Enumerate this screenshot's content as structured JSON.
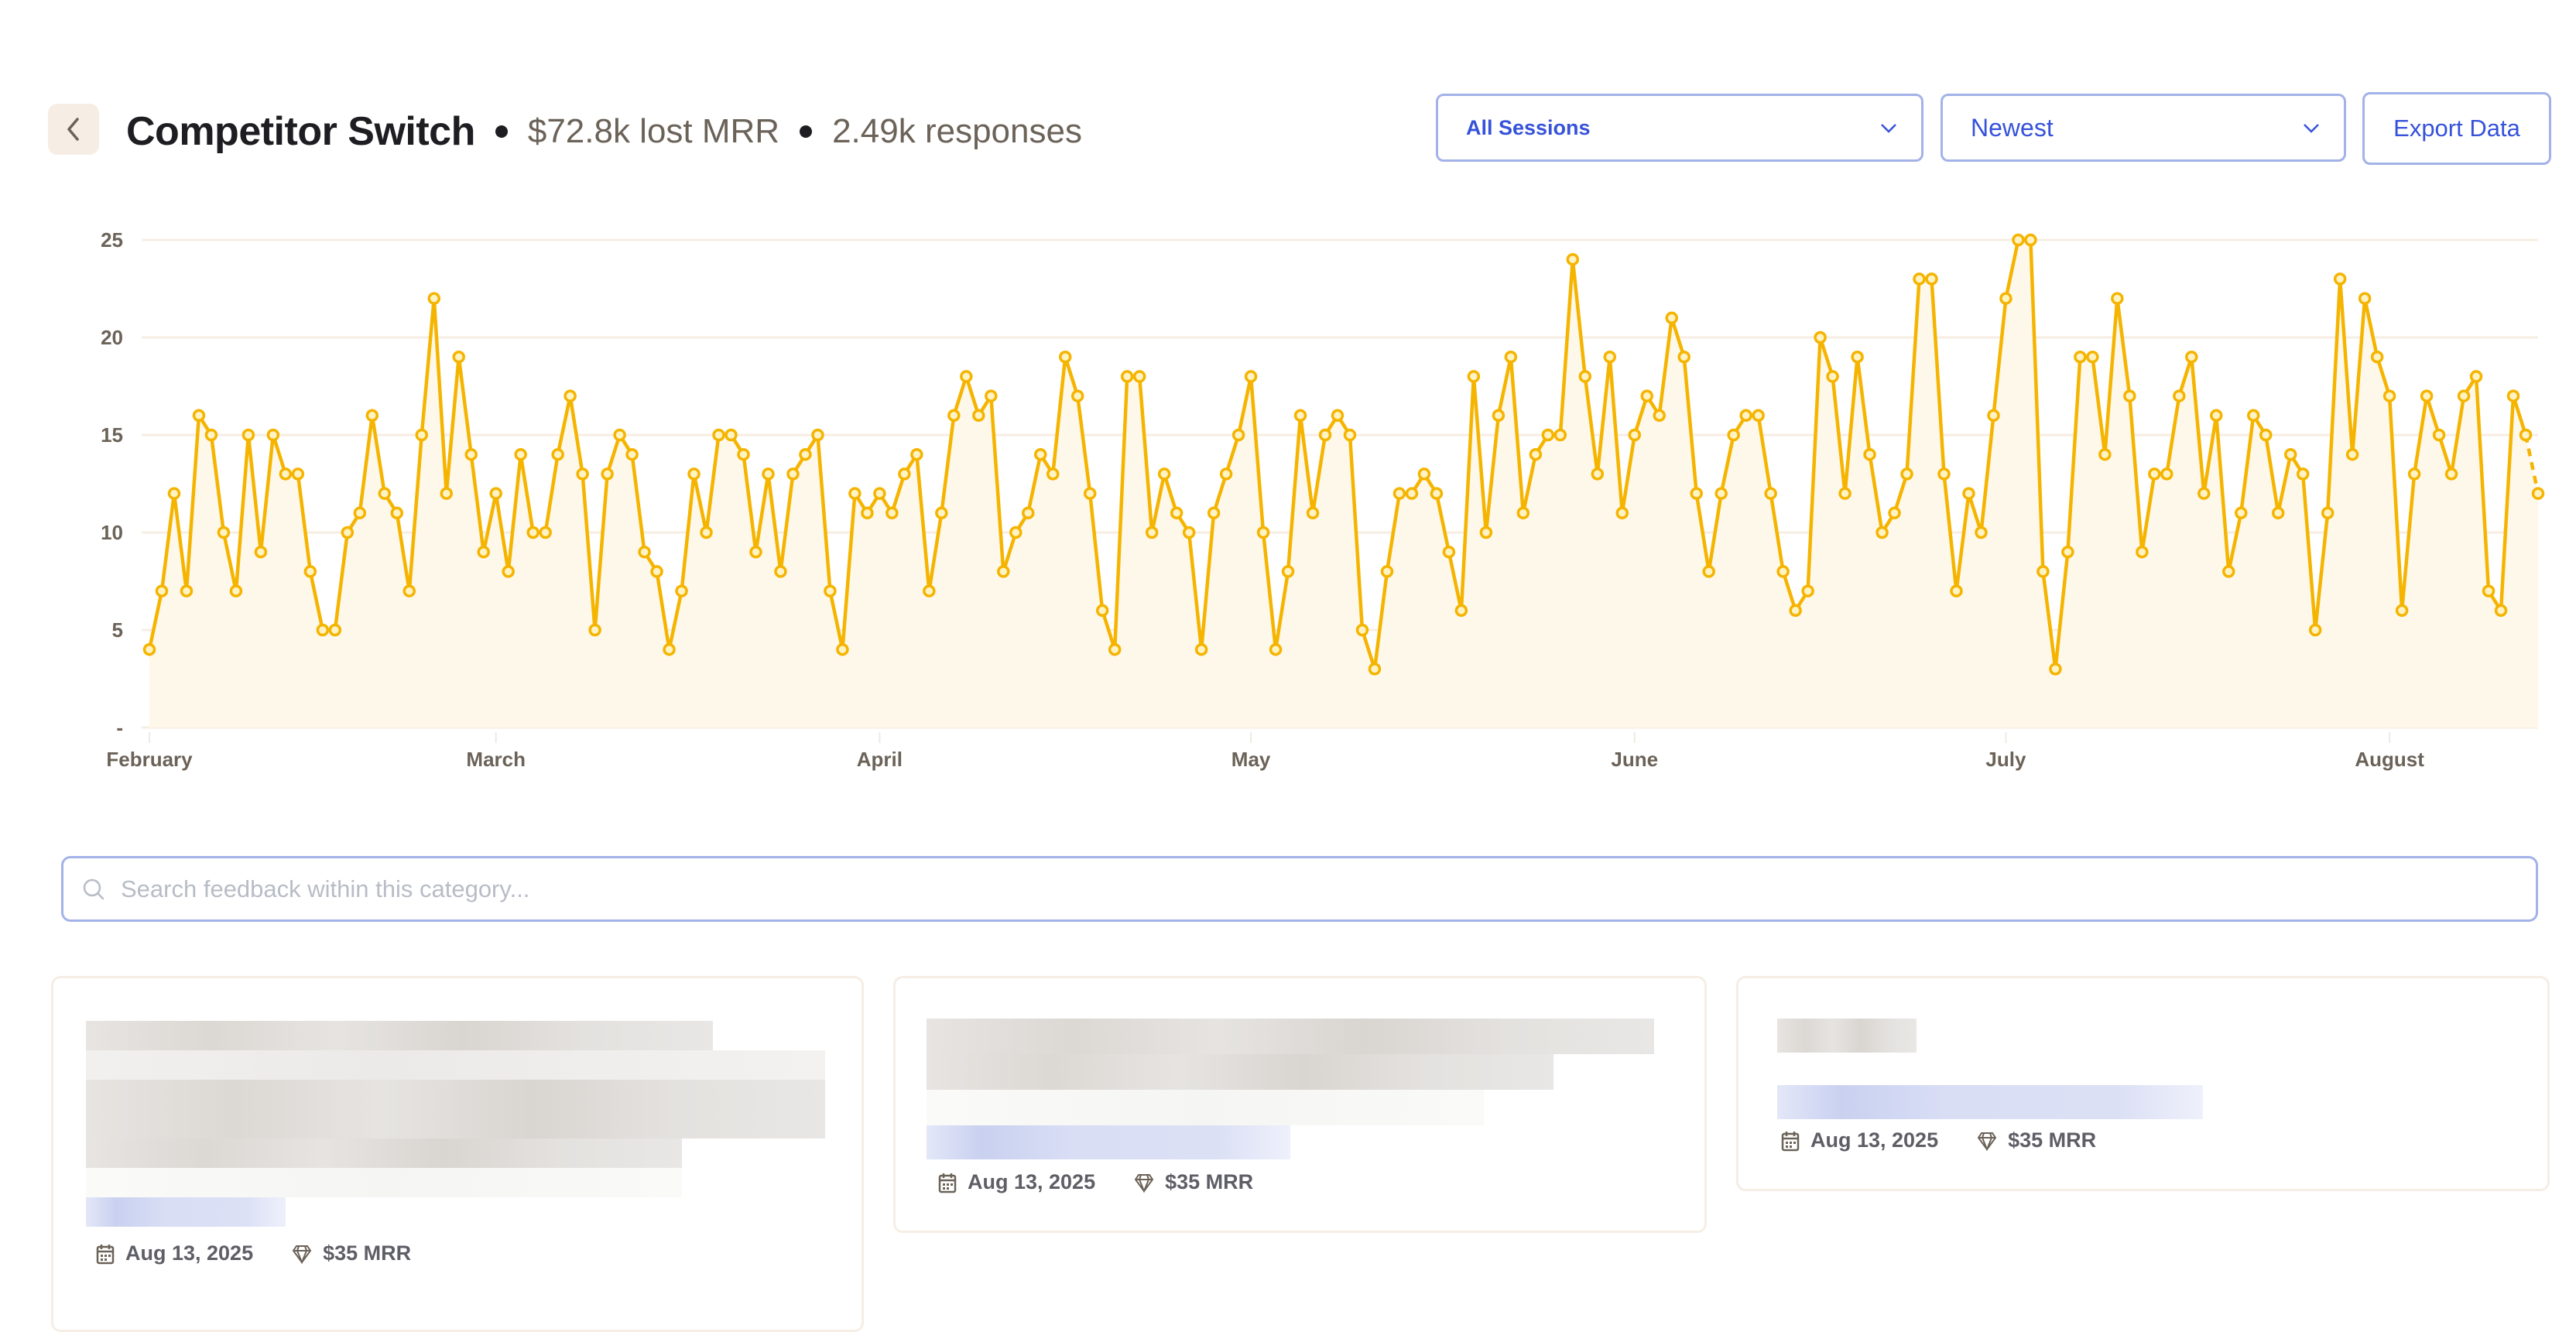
{
  "header": {
    "title": "Competitor Switch",
    "lost_mrr": "$72.8k lost MRR",
    "responses": "2.49k responses"
  },
  "controls": {
    "session_filter": "All Sessions",
    "sort": "Newest",
    "export_label": "Export Data"
  },
  "search": {
    "placeholder": "Search feedback within this category...",
    "value": ""
  },
  "cards": [
    {
      "date": "Aug 13, 2025",
      "mrr": "$35 MRR"
    },
    {
      "date": "Aug 13, 2025",
      "mrr": "$35 MRR"
    },
    {
      "date": "Aug 13, 2025",
      "mrr": "$35 MRR"
    }
  ],
  "colors": {
    "line": "#F5B400",
    "fill": "#FEF8EA",
    "accent": "#3652D9",
    "grid": "#F7EEE3"
  },
  "chart_data": {
    "type": "line",
    "start_date": "2025-02-01",
    "end_date": "2025-08-13",
    "x_tick_labels": [
      "February",
      "March",
      "April",
      "May",
      "June",
      "July",
      "August"
    ],
    "y_tick_labels": [
      "25",
      "20",
      "15",
      "10",
      "5",
      "-"
    ],
    "y_ticks": [
      25,
      20,
      15,
      10,
      5,
      0
    ],
    "ylim": [
      0,
      25
    ],
    "grid": true,
    "last_point_dashed": true,
    "values": [
      4,
      7,
      12,
      7,
      16,
      15,
      10,
      7,
      15,
      9,
      15,
      13,
      13,
      8,
      5,
      5,
      10,
      11,
      16,
      12,
      11,
      7,
      15,
      22,
      12,
      19,
      14,
      9,
      12,
      8,
      14,
      10,
      10,
      14,
      17,
      13,
      5,
      13,
      15,
      14,
      9,
      8,
      4,
      7,
      13,
      10,
      15,
      15,
      14,
      9,
      13,
      8,
      13,
      14,
      15,
      7,
      4,
      12,
      11,
      12,
      11,
      13,
      14,
      7,
      11,
      16,
      18,
      16,
      17,
      8,
      10,
      11,
      14,
      13,
      19,
      17,
      12,
      6,
      4,
      18,
      18,
      10,
      13,
      11,
      10,
      4,
      11,
      13,
      15,
      18,
      10,
      4,
      8,
      16,
      11,
      15,
      16,
      15,
      5,
      3,
      8,
      12,
      12,
      13,
      12,
      9,
      6,
      18,
      10,
      16,
      19,
      11,
      14,
      15,
      15,
      24,
      18,
      13,
      19,
      11,
      15,
      17,
      16,
      21,
      19,
      12,
      8,
      12,
      15,
      16,
      16,
      12,
      8,
      6,
      7,
      20,
      18,
      12,
      19,
      14,
      10,
      11,
      13,
      23,
      23,
      13,
      7,
      12,
      10,
      16,
      22,
      25,
      25,
      8,
      3,
      9,
      19,
      19,
      14,
      22,
      17,
      9,
      13,
      13,
      17,
      19,
      12,
      16,
      8,
      11,
      16,
      15,
      11,
      14,
      13,
      5,
      11,
      23,
      14,
      22,
      19,
      17,
      6,
      13,
      17,
      15,
      13,
      17,
      18,
      7,
      6,
      17,
      15,
      12
    ]
  }
}
